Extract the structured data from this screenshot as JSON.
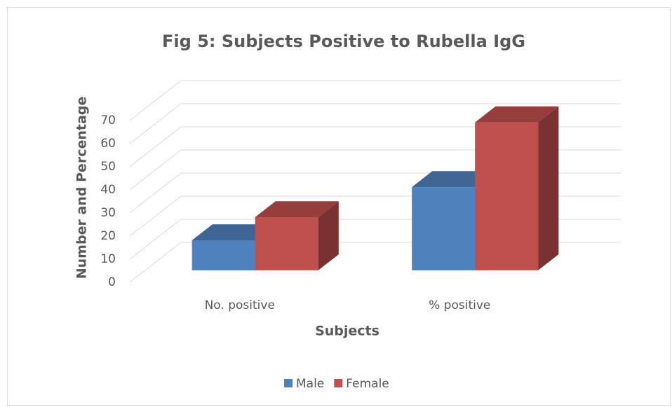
{
  "chart_data": {
    "type": "bar3d",
    "title": "Fig 5: Subjects Positive to Rubella IgG",
    "x_label": "Subjects",
    "y_label": "Number and Percentage",
    "categories": [
      "No. positive",
      "% positive"
    ],
    "series": [
      {
        "name": "Male",
        "color": "#4f81bd",
        "values": [
          13,
          36
        ]
      },
      {
        "name": "Female",
        "color": "#c0504d",
        "values": [
          23,
          64
        ]
      }
    ],
    "ylim": [
      0,
      70
    ],
    "yticks": [
      0,
      10,
      20,
      30,
      40,
      50,
      60,
      70
    ],
    "grid": true,
    "legend": "bottom"
  }
}
